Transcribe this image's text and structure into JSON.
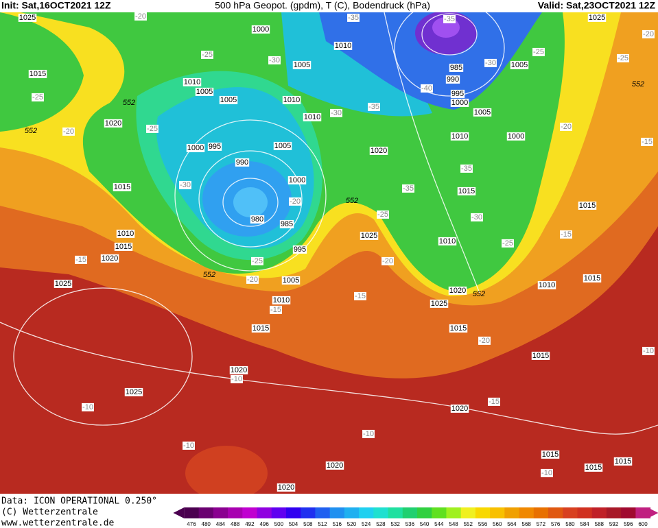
{
  "header": {
    "init": "Init: Sat,16OCT2021 12Z",
    "title": "500 hPa Geopot. (gpdm), T (C), Bodendruck (hPa)",
    "valid": "Valid: Sat,23OCT2021 12Z"
  },
  "footer": {
    "data": "Data: ICON OPERATIONAL 0.250°",
    "copyright": "(C) Wetterzentrale",
    "url": "www.wetterzentrale.de"
  },
  "colorbar": {
    "levels": [
      476,
      480,
      484,
      488,
      492,
      496,
      500,
      504,
      508,
      512,
      516,
      520,
      524,
      528,
      532,
      536,
      540,
      544,
      548,
      552,
      556,
      560,
      564,
      568,
      572,
      576,
      580,
      584,
      588,
      592,
      596,
      600
    ],
    "colors": [
      "#4b0050",
      "#6a0070",
      "#8a0090",
      "#a800b0",
      "#c000d0",
      "#9000e0",
      "#6000f0",
      "#3000f0",
      "#2030f0",
      "#2060f0",
      "#2090f0",
      "#20b0f0",
      "#20d0f0",
      "#20e0d0",
      "#20e0a0",
      "#20d070",
      "#30d040",
      "#60e020",
      "#a0f020",
      "#f0f020",
      "#f8d800",
      "#f8c000",
      "#f0a000",
      "#f08800",
      "#e87000",
      "#e05810",
      "#d84020",
      "#d03020",
      "#c02028",
      "#a81828",
      "#a00a30",
      "#c02080"
    ]
  },
  "map": {
    "pressure_labels": [
      1025,
      1000,
      1010,
      1025,
      1015,
      1010,
      1005,
      1005,
      985,
      990,
      995,
      1000,
      1005,
      1005,
      1010,
      1010,
      1005,
      1020,
      1010,
      1000,
      1000,
      995,
      1005,
      1020,
      990,
      1000,
      1015,
      1015,
      1015,
      980,
      985,
      1010,
      1010,
      1015,
      1020,
      995,
      1025,
      1025,
      1005,
      1010,
      1015,
      1020,
      1010,
      1025,
      1015,
      1015,
      1015,
      1020,
      1025,
      1020,
      1015,
      1015,
      1015,
      1020,
      1020
    ],
    "temperature_labels": [
      -20,
      -35,
      -35,
      -20,
      -25,
      -30,
      -25,
      -25,
      -30,
      -25,
      -40,
      -30,
      -35,
      -20,
      -25,
      -20,
      -15,
      -35,
      -30,
      -20,
      -35,
      -25,
      -30,
      -15,
      -25,
      -25,
      -20,
      -20,
      -15,
      -15,
      -15,
      -20,
      -10,
      -10,
      -10,
      -15,
      -10,
      -10,
      -10
    ],
    "geopotential_labels": [
      552,
      552,
      552,
      552,
      552,
      552
    ]
  }
}
